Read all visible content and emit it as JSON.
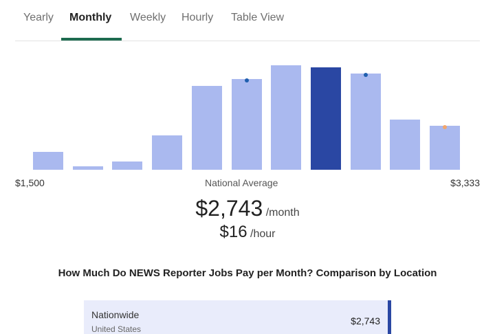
{
  "tabs": [
    {
      "label": "Yearly"
    },
    {
      "label": "Monthly"
    },
    {
      "label": "Weekly"
    },
    {
      "label": "Hourly"
    },
    {
      "label": "Table View"
    }
  ],
  "active_tab": "Monthly",
  "chart_data": {
    "type": "bar",
    "x_min_label": "$1,500",
    "x_max_label": "$3,333",
    "center_label": "National Average",
    "values": [
      0.17,
      0.03,
      0.08,
      0.33,
      0.8,
      0.87,
      1.0,
      0.98,
      0.92,
      0.48,
      0.42
    ],
    "highlight_index": 7,
    "markers": [
      {
        "bar": 5,
        "color": "#1f5fae"
      },
      {
        "bar": 8,
        "color": "#1f5fae"
      },
      {
        "bar": 10,
        "color": "#f2a66b"
      }
    ],
    "colors": {
      "bar": "#aab9ef",
      "highlight": "#2a47a3"
    }
  },
  "salary": {
    "monthly_value": "$2,743",
    "monthly_unit": "/month",
    "hourly_value": "$16",
    "hourly_unit": "/hour"
  },
  "comparison": {
    "title": "How Much Do NEWS Reporter Jobs Pay per Month? Comparison by Location",
    "locations": [
      {
        "name": "Nationwide",
        "country": "United States",
        "value": "$2,743"
      }
    ]
  }
}
